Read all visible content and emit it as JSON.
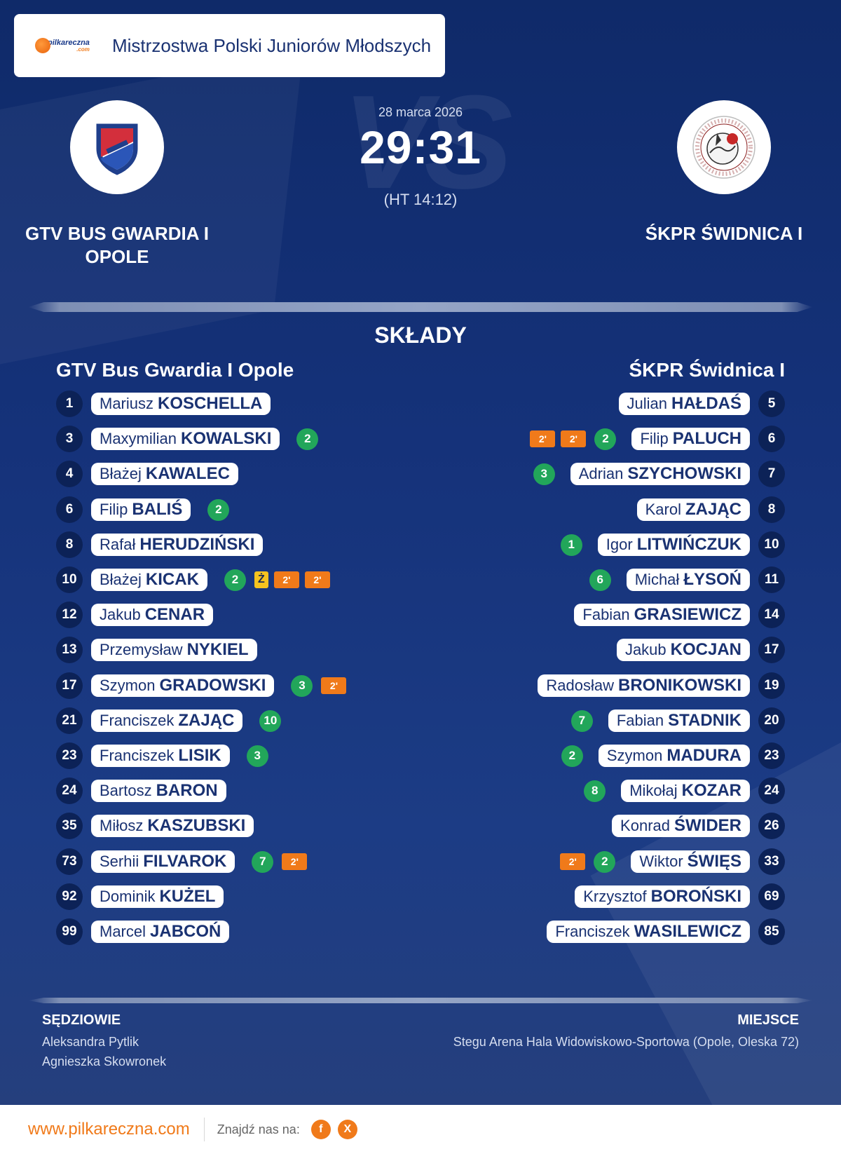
{
  "header": {
    "logo_text": "pilkareczna",
    "logo_sub": ".com",
    "competition": "Mistrzostwa Polski Juniorów Młodszych"
  },
  "match": {
    "date": "28 marca 2026",
    "score": "29:31",
    "halftime": "(HT 14:12)",
    "home_name": "GTV BUS GWARDIA I OPOLE",
    "away_name": "ŚKPR ŚWIDNICA I",
    "vs": "VS"
  },
  "lineups": {
    "title": "SKŁADY",
    "home_title": "GTV Bus Gwardia I Opole",
    "away_title": "ŚKPR Świdnica I",
    "home": [
      {
        "number": "1",
        "first": "Mariusz",
        "last": "KOSCHELLA",
        "stats": []
      },
      {
        "number": "3",
        "first": "Maxymilian",
        "last": "KOWALSKI",
        "stats": [
          {
            "type": "goal",
            "label": "2"
          }
        ]
      },
      {
        "number": "4",
        "first": "Błażej",
        "last": "KAWALEC",
        "stats": []
      },
      {
        "number": "6",
        "first": "Filip",
        "last": "BALIŚ",
        "stats": [
          {
            "type": "goal",
            "label": "2"
          }
        ]
      },
      {
        "number": "8",
        "first": "Rafał",
        "last": "HERUDZIŃSKI",
        "stats": []
      },
      {
        "number": "10",
        "first": "Błażej",
        "last": "KICAK",
        "stats": [
          {
            "type": "goal",
            "label": "2"
          },
          {
            "type": "yellow",
            "label": "Ż"
          },
          {
            "type": "pen",
            "label": "2'"
          },
          {
            "type": "pen",
            "label": "2'"
          }
        ]
      },
      {
        "number": "12",
        "first": "Jakub",
        "last": "CENAR",
        "stats": []
      },
      {
        "number": "13",
        "first": "Przemysław",
        "last": "NYKIEL",
        "stats": []
      },
      {
        "number": "17",
        "first": "Szymon",
        "last": "GRADOWSKI",
        "stats": [
          {
            "type": "goal",
            "label": "3"
          },
          {
            "type": "pen",
            "label": "2'"
          }
        ]
      },
      {
        "number": "21",
        "first": "Franciszek",
        "last": "ZAJĄC",
        "stats": [
          {
            "type": "goal",
            "label": "10"
          }
        ]
      },
      {
        "number": "23",
        "first": "Franciszek",
        "last": "LISIK",
        "stats": [
          {
            "type": "goal",
            "label": "3"
          }
        ]
      },
      {
        "number": "24",
        "first": "Bartosz",
        "last": "BARON",
        "stats": []
      },
      {
        "number": "35",
        "first": "Miłosz",
        "last": "KASZUBSKI",
        "stats": []
      },
      {
        "number": "73",
        "first": "Serhii",
        "last": "FILVAROK",
        "stats": [
          {
            "type": "goal",
            "label": "7"
          },
          {
            "type": "pen",
            "label": "2'"
          }
        ]
      },
      {
        "number": "92",
        "first": "Dominik",
        "last": "KUŻEL",
        "stats": []
      },
      {
        "number": "99",
        "first": "Marcel",
        "last": "JABCOŃ",
        "stats": []
      }
    ],
    "away": [
      {
        "number": "5",
        "first": "Julian",
        "last": "HAŁDAŚ",
        "stats": []
      },
      {
        "number": "6",
        "first": "Filip",
        "last": "PALUCH",
        "stats": [
          {
            "type": "goal",
            "label": "2"
          },
          {
            "type": "pen",
            "label": "2'"
          },
          {
            "type": "pen",
            "label": "2'"
          }
        ]
      },
      {
        "number": "7",
        "first": "Adrian",
        "last": "SZYCHOWSKI",
        "stats": [
          {
            "type": "goal",
            "label": "3"
          }
        ]
      },
      {
        "number": "8",
        "first": "Karol",
        "last": "ZAJĄC",
        "stats": []
      },
      {
        "number": "10",
        "first": "Igor",
        "last": "LITWIŃCZUK",
        "stats": [
          {
            "type": "goal",
            "label": "1"
          }
        ]
      },
      {
        "number": "11",
        "first": "Michał",
        "last": "ŁYSOŃ",
        "stats": [
          {
            "type": "goal",
            "label": "6"
          }
        ]
      },
      {
        "number": "14",
        "first": "Fabian",
        "last": "GRASIEWICZ",
        "stats": []
      },
      {
        "number": "17",
        "first": "Jakub",
        "last": "KOCJAN",
        "stats": []
      },
      {
        "number": "19",
        "first": "Radosław",
        "last": "BRONIKOWSKI",
        "stats": []
      },
      {
        "number": "20",
        "first": "Fabian",
        "last": "STADNIK",
        "stats": [
          {
            "type": "goal",
            "label": "7"
          }
        ]
      },
      {
        "number": "23",
        "first": "Szymon",
        "last": "MADURA",
        "stats": [
          {
            "type": "goal",
            "label": "2"
          }
        ]
      },
      {
        "number": "24",
        "first": "Mikołaj",
        "last": "KOZAR",
        "stats": [
          {
            "type": "goal",
            "label": "8"
          }
        ]
      },
      {
        "number": "26",
        "first": "Konrad",
        "last": "ŚWIDER",
        "stats": []
      },
      {
        "number": "33",
        "first": "Wiktor",
        "last": "ŚWIĘS",
        "stats": [
          {
            "type": "goal",
            "label": "2"
          },
          {
            "type": "pen",
            "label": "2'"
          }
        ]
      },
      {
        "number": "69",
        "first": "Krzysztof",
        "last": "BOROŃSKI",
        "stats": []
      },
      {
        "number": "85",
        "first": "Franciszek",
        "last": "WASILEWICZ",
        "stats": []
      }
    ]
  },
  "officials": {
    "referees_title": "SĘDZIOWIE",
    "referees": [
      "Aleksandra Pytlik",
      "Agnieszka Skowronek"
    ],
    "venue_title": "MIEJSCE",
    "venue": "Stegu Arena Hala Widowiskowo-Sportowa (Opole, Oleska 72)"
  },
  "footer": {
    "site": "www.pilkareczna.com",
    "find_us": "Znajdź nas na:",
    "social": [
      {
        "icon": "facebook-icon",
        "label": "f"
      },
      {
        "icon": "x-icon",
        "label": "X"
      }
    ]
  },
  "colors": {
    "background": "#15327a",
    "accent": "#f07a1a",
    "goal": "#22a65a",
    "yellow_card": "#f5c31f",
    "number_badge": "#0c2257"
  }
}
